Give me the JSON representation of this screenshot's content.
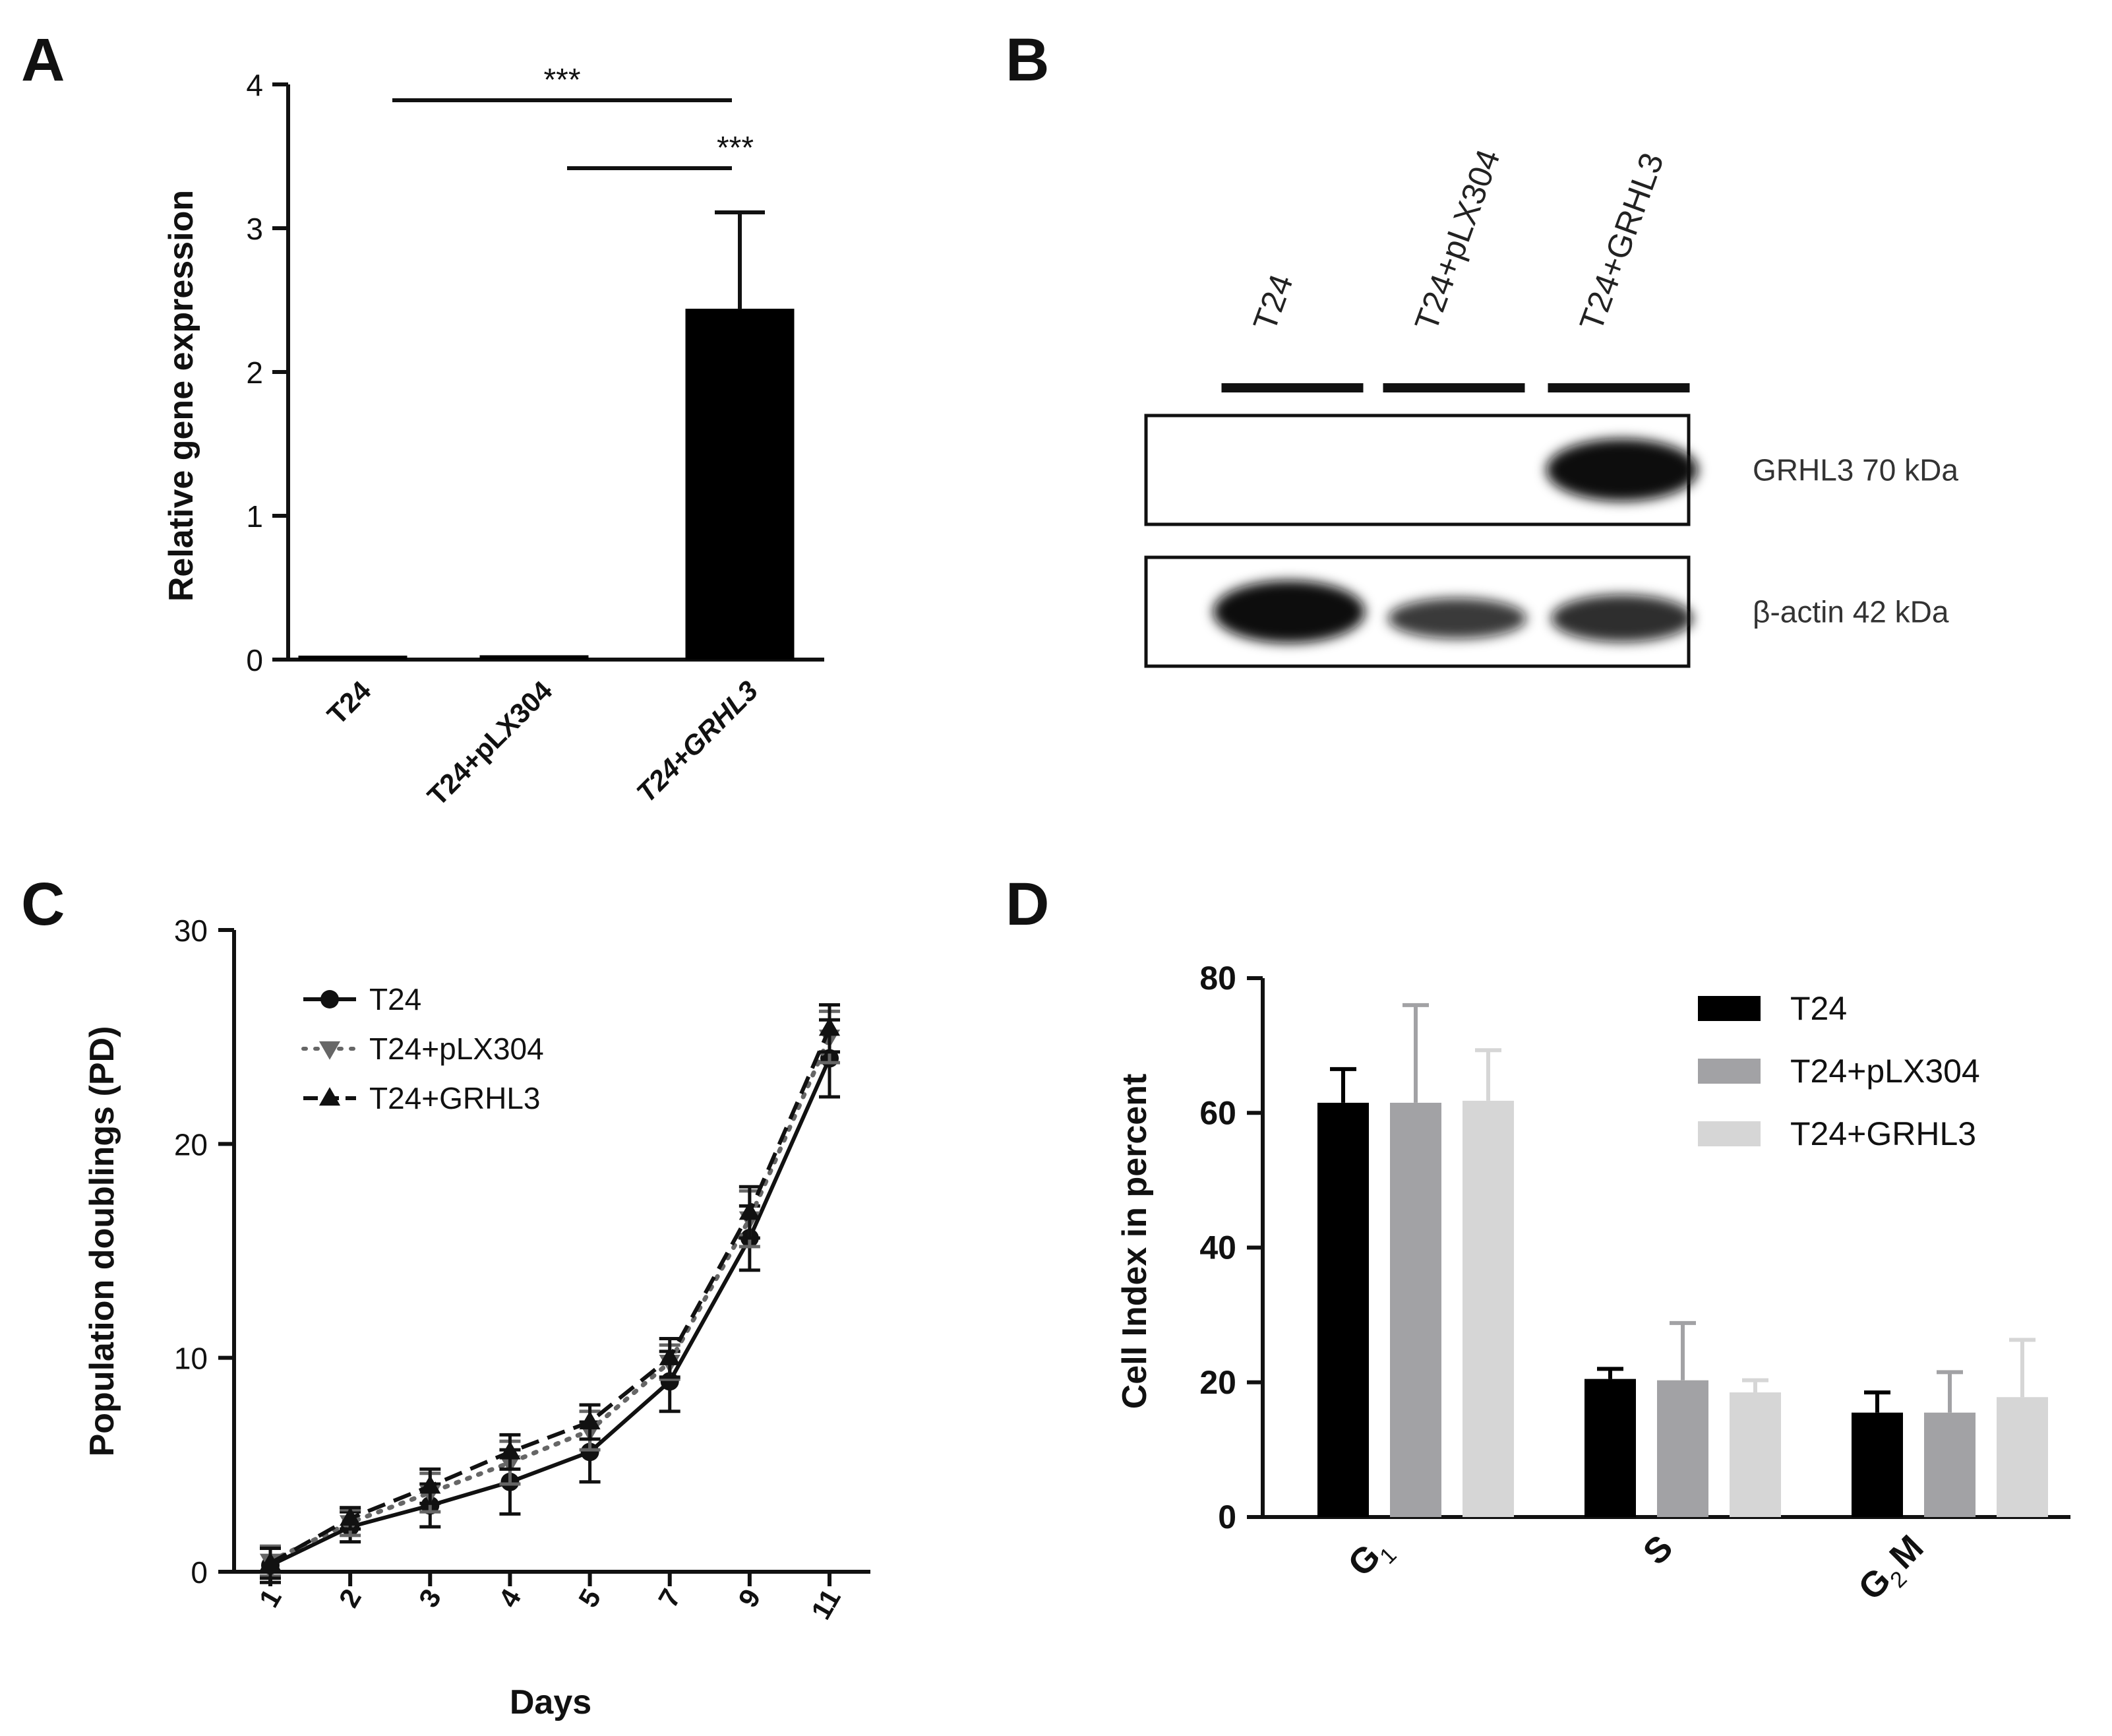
{
  "panels": {
    "A": {
      "letter": "A"
    },
    "B": {
      "letter": "B"
    },
    "C": {
      "letter": "C"
    },
    "D": {
      "letter": "D"
    }
  },
  "chart_data": [
    {
      "panel": "A",
      "type": "bar",
      "ylabel": "Relative gene expression",
      "ylim": [
        0,
        4
      ],
      "yticks": [
        "0",
        "1",
        "2",
        "3",
        "4"
      ],
      "categories": [
        "T24",
        "T24+pLX304",
        "T24+GRHL3"
      ],
      "values": [
        0.02,
        0.03,
        2.44
      ],
      "errors": [
        0,
        0,
        0.67
      ],
      "bar_color": "#000000",
      "significance": [
        {
          "from": "T24",
          "to": "T24+GRHL3",
          "label": "***"
        },
        {
          "from": "T24+pLX304",
          "to": "T24+GRHL3",
          "label": "***"
        }
      ]
    },
    {
      "panel": "C",
      "type": "line",
      "xlabel": "Days",
      "ylabel": "Population doublings (PD)",
      "ylim": [
        0,
        30
      ],
      "yticks": [
        "0",
        "10",
        "20",
        "30"
      ],
      "categories": [
        "1",
        "2",
        "3",
        "4",
        "5",
        "7",
        "9",
        "11"
      ],
      "legend_position": "top-left",
      "series": [
        {
          "name": "T24",
          "marker": "circle",
          "style": "solid",
          "color": "#111111",
          "values": [
            0.3,
            2.1,
            3.1,
            4.2,
            5.6,
            8.9,
            15.6,
            24.0
          ],
          "errors": [
            0.8,
            0.7,
            1.0,
            1.5,
            1.4,
            1.4,
            1.5,
            1.8
          ]
        },
        {
          "name": "T24+pLX304",
          "marker": "triangle-down",
          "style": "dotted",
          "color": "#666666",
          "values": [
            0.5,
            2.3,
            3.7,
            5.1,
            6.6,
            9.8,
            16.5,
            25.0
          ],
          "errors": [
            0.7,
            0.6,
            0.9,
            1.0,
            0.9,
            0.8,
            1.3,
            1.2
          ]
        },
        {
          "name": "T24+GRHL3",
          "marker": "triangle-up",
          "style": "dashed",
          "color": "#111111",
          "values": [
            0.4,
            2.5,
            4.0,
            5.6,
            7.0,
            10.0,
            16.8,
            25.4
          ],
          "errors": [
            0.7,
            0.5,
            0.8,
            0.8,
            0.8,
            0.9,
            1.2,
            1.1
          ]
        }
      ]
    },
    {
      "panel": "D",
      "type": "bar",
      "ylabel": "Cell Index in percent",
      "ylim": [
        0,
        80
      ],
      "yticks": [
        "0",
        "20",
        "40",
        "60",
        "80"
      ],
      "categories": [
        "G1",
        "S",
        "G2M"
      ],
      "legend_position": "top-right",
      "series": [
        {
          "name": "T24",
          "color": "#000000",
          "values": [
            61.5,
            20.5,
            15.5
          ],
          "errors": [
            5.0,
            1.5,
            3.0
          ]
        },
        {
          "name": "T24+pLX304",
          "color": "#a2a2a5",
          "values": [
            61.5,
            20.3,
            15.5
          ],
          "errors": [
            14.5,
            8.5,
            6.0
          ]
        },
        {
          "name": "T24+GRHL3",
          "color": "#d6d6d6",
          "values": [
            61.8,
            18.5,
            17.8
          ],
          "errors": [
            7.5,
            1.8,
            8.5
          ]
        }
      ]
    }
  ],
  "blot": {
    "lanes": [
      "T24",
      "T24+pLX304",
      "T24+GRHL3"
    ],
    "rows": [
      {
        "label": "GRHL3 70 kDa",
        "intensities": [
          0,
          0,
          1.0
        ]
      },
      {
        "label": "β-actin 42 kDa",
        "intensities": [
          1.0,
          0.6,
          0.7
        ]
      }
    ]
  }
}
